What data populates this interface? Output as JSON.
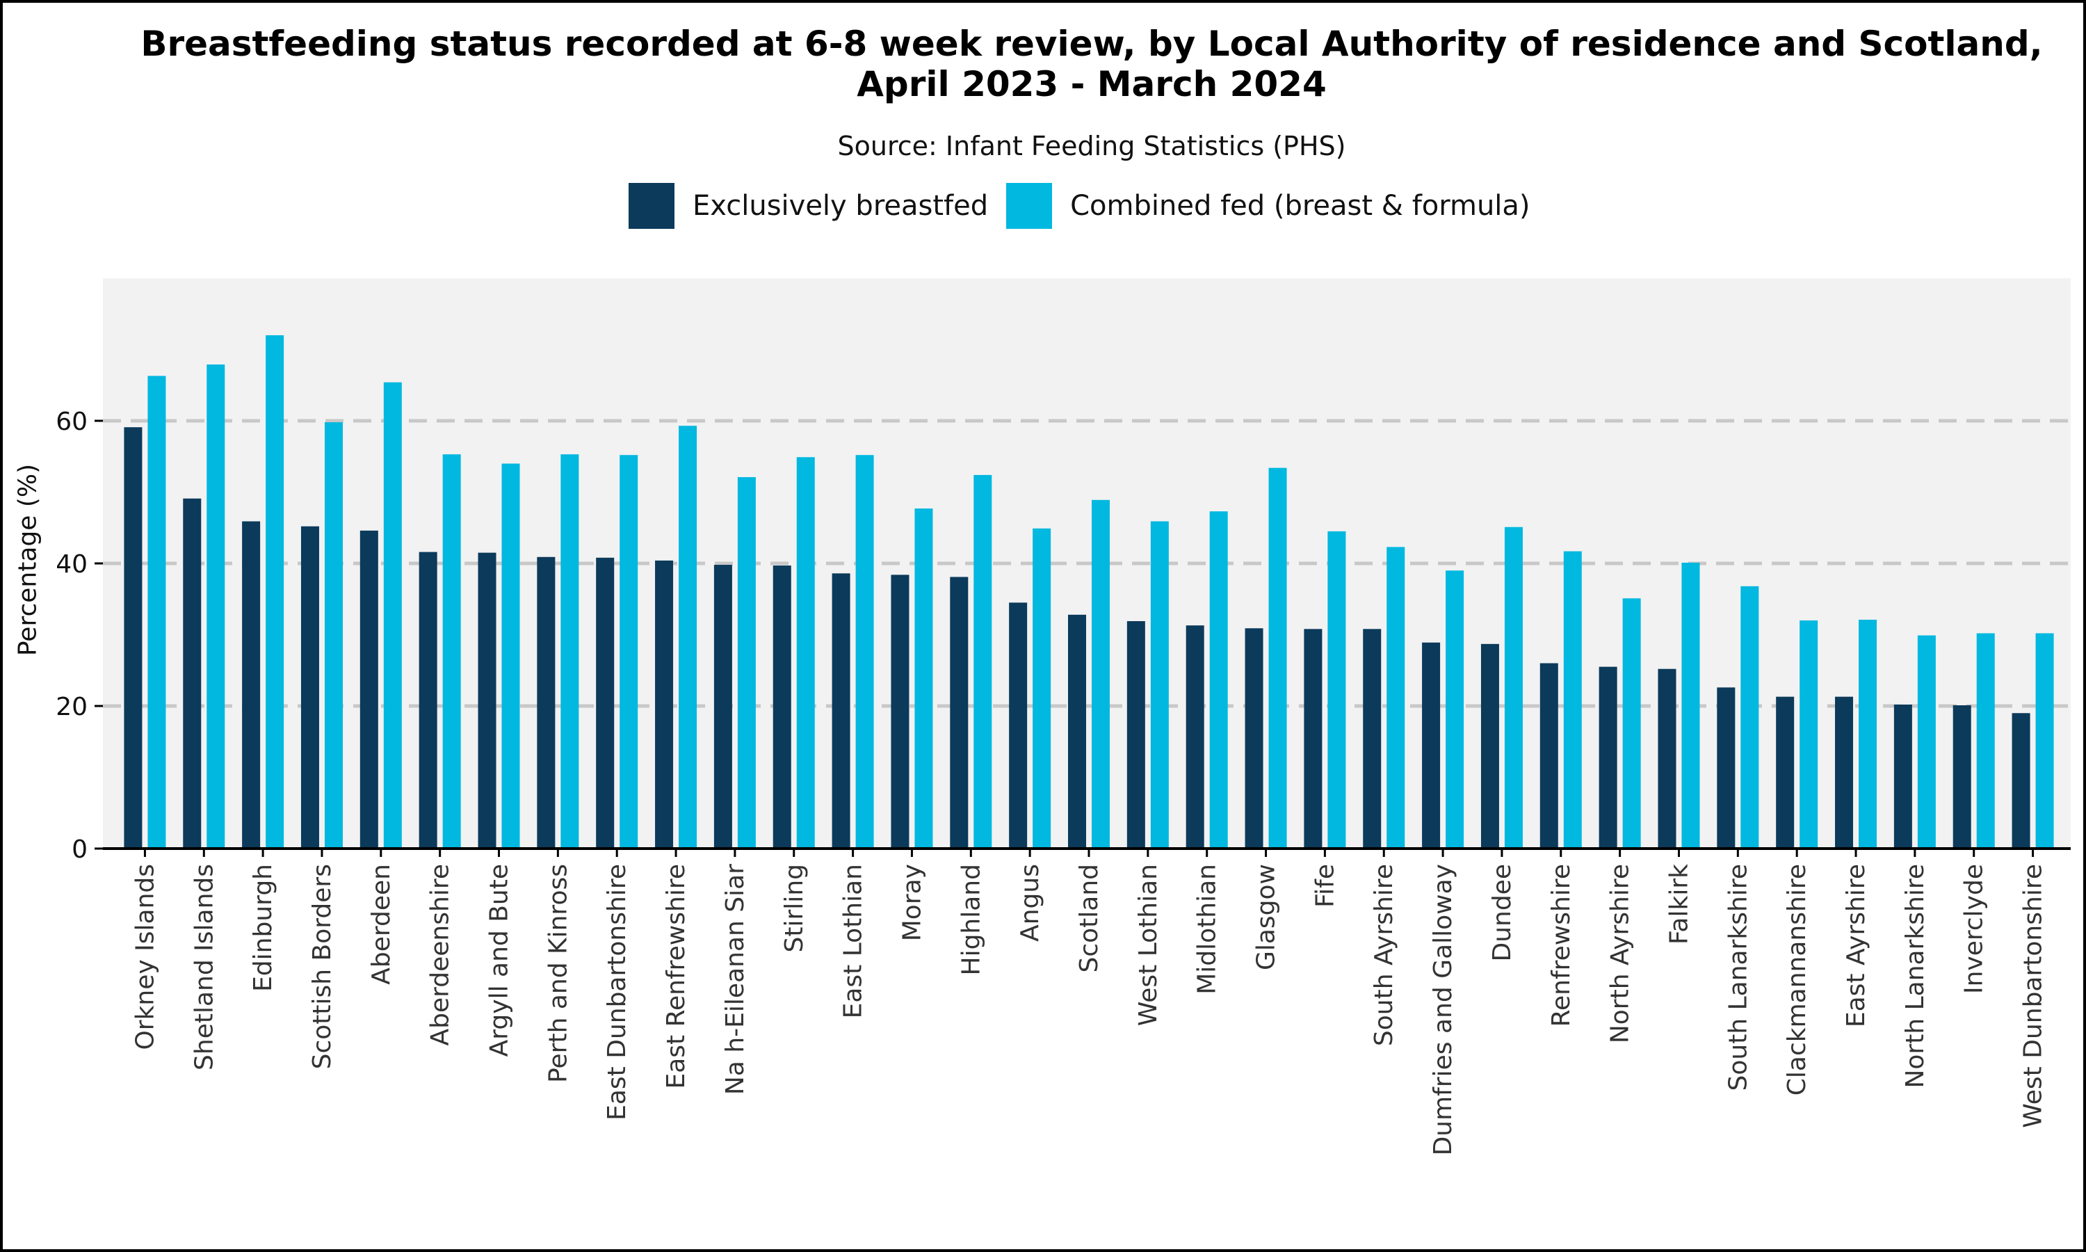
{
  "chart_data": {
    "type": "bar",
    "title_line1": "Breastfeeding status recorded at 6-8 week review, by Local Authority of residence and Scotland,",
    "title_line2": "April 2023 - March 2024",
    "subtitle": "Source: Infant Feeding Statistics (PHS)",
    "ylabel": "Percentage  (%)",
    "xlabel": "",
    "ylim": [
      0,
      80
    ],
    "yticks": [
      "0",
      "20",
      "40",
      "60"
    ],
    "categories": [
      "Orkney Islands",
      "Shetland Islands",
      "Edinburgh",
      "Scottish Borders",
      "Aberdeen",
      "Aberdeenshire",
      "Argyll and Bute",
      "Perth and Kinross",
      "East Dunbartonshire",
      "East Renfrewshire",
      "Na h-Eileanan Siar",
      "Stirling",
      "East Lothian",
      "Moray",
      "Highland",
      "Angus",
      "Scotland",
      "West Lothian",
      "Midlothian",
      "Glasgow",
      "Fife",
      "South Ayrshire",
      "Dumfries and Galloway",
      "Dundee",
      "Renfrewshire",
      "North Ayrshire",
      "Falkirk",
      "South Lanarkshire",
      "Clackmannanshire",
      "East Ayrshire",
      "North Lanarkshire",
      "Inverclyde",
      "West Dunbartonshire"
    ],
    "series": [
      {
        "name": "Exclusively breastfed",
        "color": "#0b3a5b",
        "values": [
          59.1,
          49.1,
          45.9,
          45.2,
          44.6,
          41.6,
          41.5,
          40.9,
          40.8,
          40.4,
          39.8,
          39.7,
          38.6,
          38.4,
          38.1,
          34.5,
          32.8,
          31.9,
          31.3,
          30.9,
          30.8,
          30.8,
          28.9,
          28.7,
          26.0,
          25.5,
          25.2,
          22.6,
          21.3,
          21.3,
          20.2,
          20.1,
          19.0
        ]
      },
      {
        "name": "Combined fed (breast & formula)",
        "color": "#00b8e0",
        "values": [
          66.3,
          67.9,
          72.0,
          59.8,
          65.4,
          55.3,
          54.0,
          55.3,
          55.2,
          59.3,
          52.1,
          54.9,
          55.2,
          47.7,
          52.4,
          44.9,
          48.9,
          45.9,
          47.3,
          53.4,
          44.5,
          42.3,
          39.0,
          45.1,
          41.7,
          35.1,
          40.1,
          36.8,
          32.0,
          32.1,
          29.9,
          30.2,
          30.2
        ]
      }
    ],
    "legend_position": "top-center",
    "grid": true
  },
  "colors": {
    "panel_background": "#f2f2f2",
    "gridline": "#c8c8c8",
    "axis": "#000000"
  }
}
